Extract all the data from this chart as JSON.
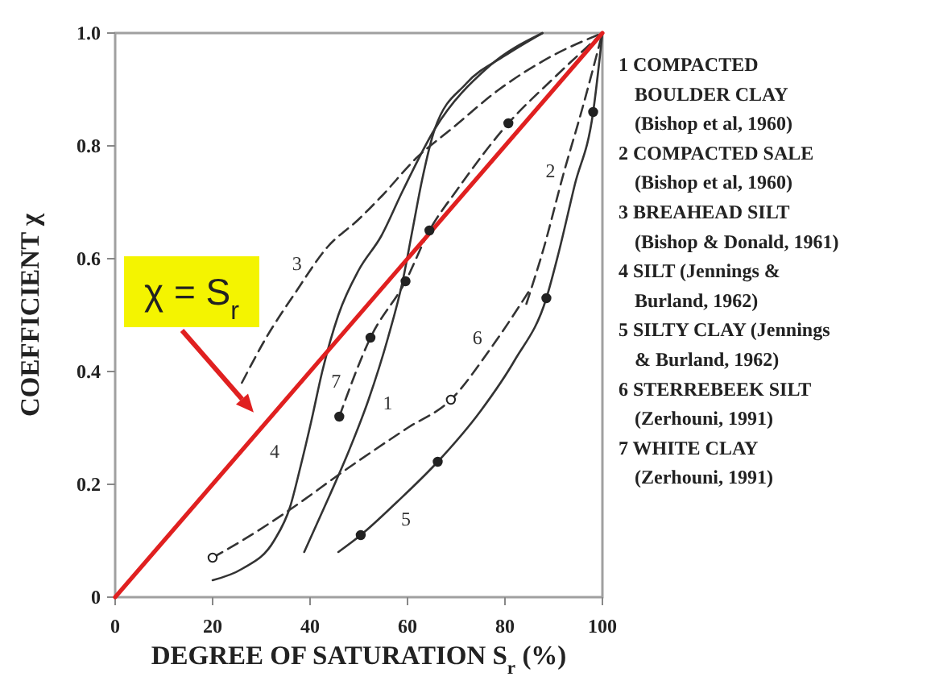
{
  "chart_data": {
    "type": "line",
    "xlabel": "DEGREE OF SATURATION S$_{r}$ (%)",
    "ylabel": "COEFFICIENT χ",
    "xlim": [
      0,
      100
    ],
    "ylim": [
      0,
      1
    ],
    "xticks": [
      0,
      20,
      40,
      60,
      80,
      100
    ],
    "yticks": [
      0,
      0.2,
      0.4,
      0.6,
      0.8,
      {
        "value": 1,
        "label": "1.0"
      }
    ],
    "series": [
      {
        "name": "1",
        "color": "#333333",
        "line_style": "solid",
        "x": [
          38.8,
          44,
          48,
          52,
          56,
          59,
          61,
          63,
          65.6,
          72,
          80,
          87.7
        ],
        "values": [
          0.08,
          0.18,
          0.26,
          0.35,
          0.46,
          0.56,
          0.65,
          0.74,
          0.83,
          0.91,
          0.96,
          1.0
        ]
      },
      {
        "name": "2",
        "color": "#333333",
        "line_style": "dashed",
        "x": [
          84.4,
          88,
          92,
          96,
          100
        ],
        "values": [
          0.52,
          0.62,
          0.75,
          0.87,
          1.0
        ]
      },
      {
        "name": "3",
        "color": "#333333",
        "line_style": "dashed",
        "x": [
          26,
          31,
          37,
          43.5,
          50,
          54.6,
          62,
          69,
          78.8,
          89.8,
          100
        ],
        "values": [
          0.38,
          0.46,
          0.54,
          0.62,
          0.67,
          0.71,
          0.78,
          0.83,
          0.9,
          0.96,
          1.0
        ]
      },
      {
        "name": "4",
        "color": "#333333",
        "line_style": "solid",
        "x": [
          20,
          26,
          32.6,
          35.9,
          38,
          40.2,
          42.5,
          45.8,
          50,
          54.6,
          59,
          65.6,
          76.6,
          87.7
        ],
        "values": [
          0.03,
          0.05,
          0.1,
          0.16,
          0.23,
          0.31,
          0.4,
          0.5,
          0.58,
          0.64,
          0.72,
          0.83,
          0.94,
          1.0
        ]
      },
      {
        "name": "5",
        "color": "#333333",
        "line_style": "solid",
        "x": [
          45.8,
          50.4,
          58,
          66.2,
          75,
          82,
          88.5,
          91,
          94.3,
          98.1,
          100
        ],
        "values": [
          0.08,
          0.11,
          0.17,
          0.24,
          0.33,
          0.42,
          0.53,
          0.61,
          0.73,
          0.86,
          1.0
        ]
      },
      {
        "name": "6",
        "color": "#333333",
        "line_style": "dashed",
        "x": [
          20,
          26,
          35,
          48,
          60,
          68.9,
          77,
          85.5
        ],
        "values": [
          0.07,
          0.1,
          0.15,
          0.23,
          0.3,
          0.35,
          0.44,
          0.55
        ]
      },
      {
        "name": "7",
        "color": "#333333",
        "line_style": "dashed",
        "x": [
          46,
          52.4,
          59.6,
          64.5,
          70,
          80.7,
          90,
          100
        ],
        "values": [
          0.32,
          0.46,
          0.56,
          0.65,
          0.72,
          0.84,
          0.92,
          1.0
        ]
      },
      {
        "color": "#e02020",
        "line_style": "solid",
        "x": [
          0,
          100
        ],
        "values": [
          0,
          1
        ]
      },
      {
        "type": "scatter",
        "color": "#222222",
        "marker": "circle",
        "x": [
          46,
          52.4,
          59.6,
          64.5,
          80.7,
          50.4,
          66.2,
          88.5,
          98.1
        ],
        "values": [
          0.32,
          0.46,
          0.56,
          0.65,
          0.84,
          0.11,
          0.24,
          0.53,
          0.86
        ]
      },
      {
        "type": "scatter",
        "color": "#ffffff",
        "marker": "circle",
        "x": [
          20,
          68.9
        ],
        "values": [
          0.07,
          0.35
        ]
      }
    ],
    "annotations": [
      {
        "text": "χ = S$_{r}$",
        "x": 30.6,
        "y": 0.306
      },
      "1 COMPACTED\nBOULDER CLAY\n(Bishop et al, 1960)",
      "2 COMPACTED SALE\n(Bishop et al, 1960)",
      "3 BREAHEAD SILT\n(Bishop & Donald, 1961)",
      "4 SILT (Jennings &\nBurland, 1962)",
      "5 SILTY CLAY (Jennings\n& Burland, 1962)",
      "6 STERREBEEK SILT\n(Zerhouni, 1991)",
      "7 WHITE CLAY\n(Zerhouni, 1991)"
    ]
  }
}
